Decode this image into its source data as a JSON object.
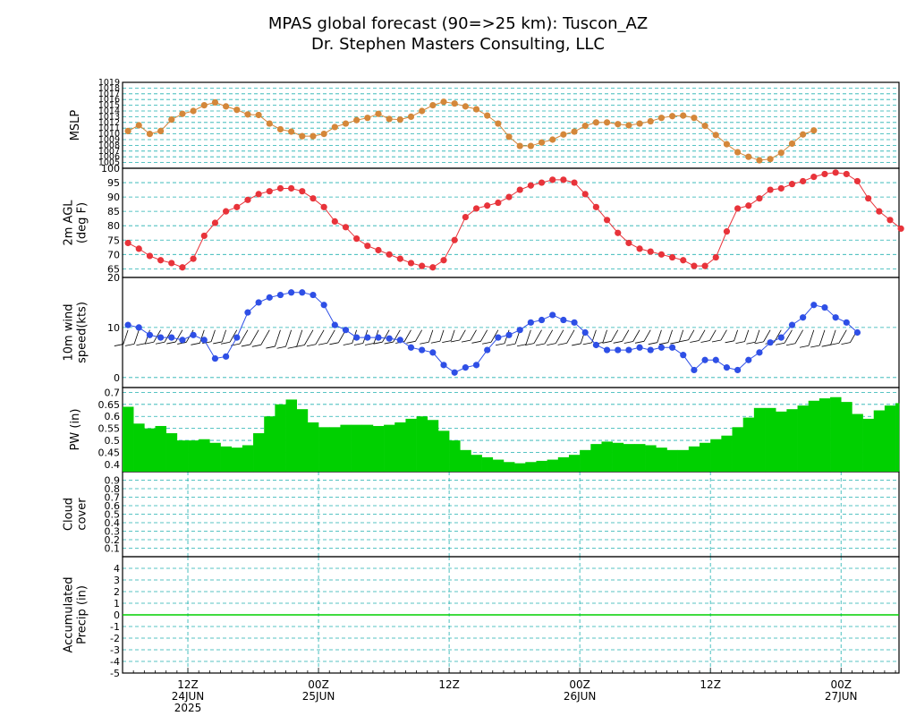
{
  "header": {
    "title_line1": "MPAS global forecast (90=>25 km): Tuscon_AZ",
    "title_line2": "Dr. Stephen Masters Consulting, LLC"
  },
  "colors": {
    "grid": "#20b0b0",
    "mslp": "#d4873a",
    "temp": "#e8333a",
    "wind": "#2e4fe6",
    "pw": "#00d000",
    "axis": "#000000",
    "barb": "#000000"
  },
  "x_axis": {
    "labels": [
      {
        "hour": 12,
        "line1": "12Z",
        "line2": "24JUN",
        "line3": "2025"
      },
      {
        "hour": 24,
        "line1": "00Z",
        "line2": "25JUN",
        "line3": ""
      },
      {
        "hour": 36,
        "line1": "12Z",
        "line2": "",
        "line3": ""
      },
      {
        "hour": 48,
        "line1": "00Z",
        "line2": "26JUN",
        "line3": ""
      },
      {
        "hour": 60,
        "line1": "12Z",
        "line2": "",
        "line3": ""
      },
      {
        "hour": 72,
        "line1": "00Z",
        "line2": "27JUN",
        "line3": ""
      }
    ]
  },
  "panels_text": {
    "mslp": {
      "ylabel": [
        "MSLP"
      ]
    },
    "temp": {
      "ylabel": [
        "2m AGL",
        "(deg F)"
      ]
    },
    "wind": {
      "ylabel": [
        "10m wind",
        "speed(kts)"
      ]
    },
    "pw": {
      "ylabel": [
        "PW (in)"
      ]
    },
    "cloud": {
      "ylabel": [
        "Cloud",
        "cover"
      ]
    },
    "precip": {
      "ylabel": [
        "Accumulated",
        "Precip (in)"
      ]
    }
  },
  "chart_data": [
    {
      "type": "line",
      "panel": "mslp",
      "ylabel": "MSLP",
      "x_hours_start": 6.5,
      "x_hours_step": 1,
      "ylim": [
        1004,
        1019
      ],
      "yticks": [
        1005,
        1006,
        1007,
        1008,
        1009,
        1010,
        1011,
        1012,
        1013,
        1014,
        1015,
        1016,
        1017,
        1018,
        1019
      ],
      "values": [
        1010.5,
        1011.5,
        1010,
        1010.5,
        1012.5,
        1013.5,
        1014,
        1015,
        1015.5,
        1014.8,
        1014.2,
        1013.4,
        1013.3,
        1011.8,
        1010.8,
        1010.4,
        1009.6,
        1009.6,
        1010,
        1011.2,
        1011.8,
        1012.4,
        1012.8,
        1013.5,
        1012.6,
        1012.5,
        1013,
        1014,
        1015,
        1015.6,
        1015.3,
        1014.8,
        1014.3,
        1013.2,
        1011.8,
        1009.5,
        1007.9,
        1007.9,
        1008.5,
        1009,
        1009.9,
        1010.4,
        1011.4,
        1012,
        1012,
        1011.7,
        1011.5,
        1011.8,
        1012.2,
        1012.8,
        1013.1,
        1013.2,
        1012.8,
        1011.4,
        1009.8,
        1008.2,
        1006.8,
        1006,
        1005.4,
        1005.6,
        1006.7,
        1008.3,
        1009.9,
        1010.6
      ]
    },
    {
      "type": "line",
      "panel": "temp",
      "ylabel": "2m AGL (deg F)",
      "x_hours_start": 6.5,
      "x_hours_step": 1,
      "ylim": [
        62,
        100
      ],
      "yticks": [
        65,
        70,
        75,
        80,
        85,
        90,
        95,
        100
      ],
      "values": [
        74,
        72,
        69.5,
        68,
        67,
        65.5,
        68.5,
        76.5,
        81,
        85,
        86.5,
        89,
        91,
        92,
        93,
        93,
        92,
        89.5,
        86.5,
        81.5,
        79.5,
        75.5,
        73,
        71.5,
        70,
        68.5,
        67,
        66,
        65.5,
        68,
        75,
        83,
        86,
        87,
        88,
        90,
        92.5,
        94,
        95,
        96,
        96,
        95,
        91,
        86.5,
        82,
        77.5,
        74,
        72,
        71,
        70,
        69,
        68,
        66,
        66,
        69,
        78,
        86,
        87,
        89.5,
        92.5,
        93,
        94.5,
        95.5,
        97,
        98,
        98.5,
        98,
        95.5,
        89.5,
        85,
        82,
        79
      ]
    },
    {
      "type": "line",
      "panel": "wind",
      "ylabel": "10m wind speed(kts)",
      "x_hours_start": 6.5,
      "x_hours_step": 1,
      "ylim": [
        -2,
        20
      ],
      "yticks": [
        0,
        10,
        20
      ],
      "values": [
        10.5,
        10,
        8.5,
        8,
        8,
        7.5,
        8.5,
        7.5,
        3.8,
        4.2,
        8,
        13,
        15,
        16,
        16.5,
        17,
        17,
        16.5,
        14.5,
        10.5,
        9.5,
        8,
        8,
        8,
        7.8,
        7.5,
        6,
        5.5,
        5,
        2.5,
        1,
        2,
        2.5,
        5.5,
        8,
        8.5,
        9.5,
        11,
        11.5,
        12.5,
        11.5,
        11,
        9,
        6.5,
        5.5,
        5.5,
        5.5,
        6,
        5.5,
        6,
        6,
        4.5,
        1.5,
        3.5,
        3.5,
        2,
        1.5,
        3.5,
        5,
        7,
        8,
        10.5,
        12,
        14.5,
        14,
        12,
        11,
        9
      ]
    },
    {
      "type": "area",
      "panel": "pw",
      "ylabel": "PW (in)",
      "x_hours_start": 6,
      "x_hours_step": 1,
      "ylim": [
        0.37,
        0.72
      ],
      "yticks": [
        0.4,
        0.45,
        0.5,
        0.55,
        0.6,
        0.65,
        0.7
      ],
      "values": [
        0.64,
        0.57,
        0.55,
        0.56,
        0.53,
        0.5,
        0.5,
        0.505,
        0.49,
        0.475,
        0.47,
        0.48,
        0.53,
        0.6,
        0.65,
        0.67,
        0.63,
        0.575,
        0.555,
        0.555,
        0.565,
        0.565,
        0.565,
        0.56,
        0.565,
        0.575,
        0.59,
        0.6,
        0.585,
        0.54,
        0.5,
        0.46,
        0.44,
        0.43,
        0.42,
        0.41,
        0.405,
        0.41,
        0.415,
        0.42,
        0.43,
        0.44,
        0.46,
        0.485,
        0.495,
        0.49,
        0.485,
        0.485,
        0.48,
        0.47,
        0.46,
        0.46,
        0.475,
        0.49,
        0.505,
        0.52,
        0.555,
        0.595,
        0.635,
        0.635,
        0.62,
        0.63,
        0.645,
        0.665,
        0.675,
        0.68,
        0.66,
        0.61,
        0.59,
        0.625,
        0.645,
        0.655
      ]
    },
    {
      "type": "line",
      "panel": "cloud",
      "ylabel": "Cloud cover",
      "ylim": [
        0,
        1
      ],
      "yticks": [
        0.1,
        0.2,
        0.3,
        0.4,
        0.5,
        0.6,
        0.7,
        0.8,
        0.9
      ],
      "values": []
    },
    {
      "type": "line",
      "panel": "precip",
      "ylabel": "Accumulated Precip (in)",
      "x_hours_start": 6,
      "x_hours_step": 1,
      "ylim": [
        -5,
        5
      ],
      "yticks": [
        -5,
        -4,
        -3,
        -2,
        -1,
        0,
        1,
        2,
        3,
        4
      ],
      "values": [
        0,
        0
      ]
    }
  ]
}
